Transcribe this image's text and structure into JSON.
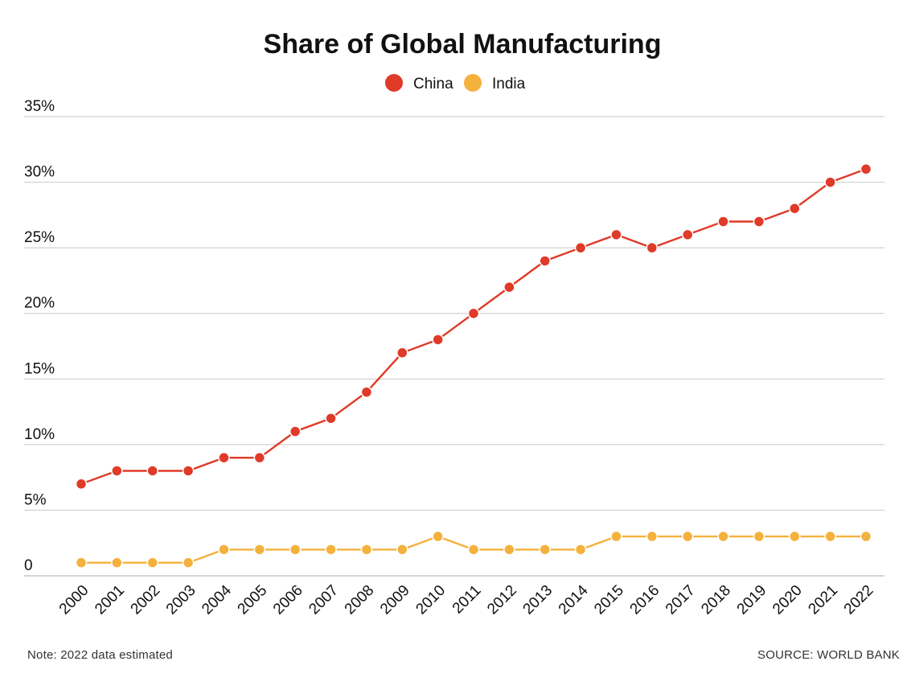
{
  "chart_data": {
    "type": "line",
    "title": "Share of Global Manufacturing",
    "xlabel": "",
    "ylabel": "",
    "x": [
      "2000",
      "2001",
      "2002",
      "2003",
      "2004",
      "2005",
      "2006",
      "2007",
      "2008",
      "2009",
      "2010",
      "2011",
      "2012",
      "2013",
      "2014",
      "2015",
      "2016",
      "2017",
      "2018",
      "2019",
      "2020",
      "2021",
      "2022"
    ],
    "ylim": [
      0,
      35
    ],
    "yticks": [
      0,
      5,
      10,
      15,
      20,
      25,
      30,
      35
    ],
    "ytick_labels": [
      "0",
      "5%",
      "10%",
      "15%",
      "20%",
      "25%",
      "30%",
      "35%"
    ],
    "grid": true,
    "legend_position": "top-center",
    "series": [
      {
        "name": "China",
        "color": "#e03a28",
        "values": [
          7,
          8,
          8,
          8,
          9,
          9,
          11,
          12,
          14,
          17,
          18,
          20,
          22,
          24,
          25,
          26,
          25,
          26,
          27,
          27,
          28,
          30,
          31
        ]
      },
      {
        "name": "India",
        "color": "#f4b13c",
        "values": [
          1,
          1,
          1,
          1,
          2,
          2,
          2,
          2,
          2,
          2,
          3,
          2,
          2,
          2,
          2,
          3,
          3,
          3,
          3,
          3,
          3,
          3,
          3
        ]
      }
    ]
  },
  "footer": {
    "note": "Note: 2022 data estimated",
    "source": "SOURCE: WORLD BANK"
  }
}
